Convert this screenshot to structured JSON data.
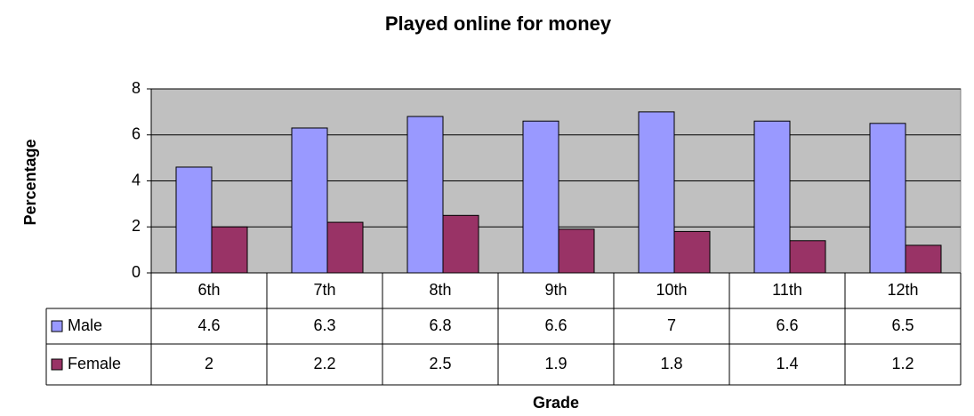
{
  "chart_data": {
    "type": "bar",
    "title": "Played online for money",
    "x_label": "Grade",
    "y_label": "Percentage",
    "categories": [
      "6th",
      "7th",
      "8th",
      "9th",
      "10th",
      "11th",
      "12th"
    ],
    "series": [
      {
        "name": "Male",
        "color": "#9999ff",
        "values": [
          4.6,
          6.3,
          6.8,
          6.6,
          7,
          6.6,
          6.5
        ]
      },
      {
        "name": "Female",
        "color": "#993366",
        "values": [
          2,
          2.2,
          2.5,
          1.9,
          1.8,
          1.4,
          1.2
        ]
      }
    ],
    "ylim": [
      0,
      8
    ],
    "yticks": [
      0,
      2,
      4,
      6,
      8
    ],
    "grid": true,
    "plot_background": "#c0c0c0"
  }
}
